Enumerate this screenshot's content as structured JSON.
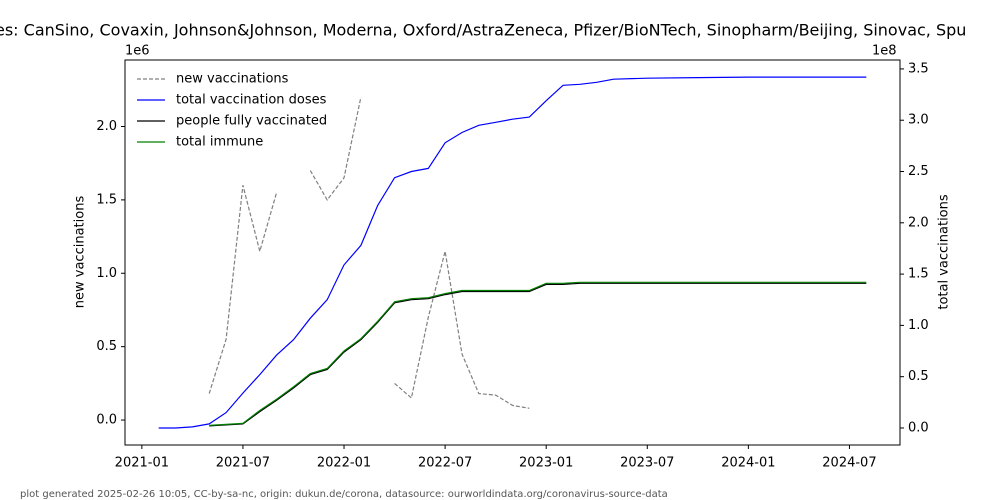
{
  "chart_data": {
    "type": "line",
    "title": "es: CanSino, Covaxin, Johnson&Johnson, Moderna, Oxford/AstraZeneca, Pfizer/BioNTech, Sinopharm/Beijing, Sinovac, Spu",
    "ylabel": "new vaccinations",
    "y2label": "total vaccinations",
    "y_offset_label": "1e6",
    "y2_offset_label": "1e8",
    "footer": "plot generated 2025-02-26 10:05, CC-by-sa-nc, origin: dukun.de/corona, datasource: ourworldindata.org/coronavirus-source-data",
    "legend": "upper left",
    "xlim": [
      "2020-12",
      "2024-10"
    ],
    "xticks": [
      "2021-01",
      "2021-07",
      "2022-01",
      "2022-07",
      "2023-01",
      "2023-07",
      "2024-01",
      "2024-07"
    ],
    "ylim": [
      -170000,
      2453000
    ],
    "yticks": [
      {
        "value": 0,
        "label": "0.0"
      },
      {
        "value": 500000,
        "label": "0.5"
      },
      {
        "value": 1000000,
        "label": "1.0"
      },
      {
        "value": 1500000,
        "label": "1.5"
      },
      {
        "value": 2000000,
        "label": "2.0"
      }
    ],
    "y2lim": [
      -16600000,
      358700000
    ],
    "y2ticks": [
      {
        "value": 0,
        "label": "0.0"
      },
      {
        "value": 50000000,
        "label": "0.5"
      },
      {
        "value": 100000000,
        "label": "1.0"
      },
      {
        "value": 150000000,
        "label": "1.5"
      },
      {
        "value": 200000000,
        "label": "2.0"
      },
      {
        "value": 250000000,
        "label": "2.5"
      },
      {
        "value": 300000000,
        "label": "3.0"
      },
      {
        "value": 350000000,
        "label": "3.5"
      }
    ],
    "x": [
      "2021-02",
      "2021-03",
      "2021-04",
      "2021-05",
      "2021-06",
      "2021-07",
      "2021-08",
      "2021-09",
      "2021-10",
      "2021-11",
      "2021-12",
      "2022-01",
      "2022-02",
      "2022-03",
      "2022-04",
      "2022-05",
      "2022-06",
      "2022-07",
      "2022-08",
      "2022-09",
      "2022-10",
      "2022-11",
      "2022-12",
      "2023-01",
      "2023-02",
      "2023-03",
      "2023-04",
      "2023-05",
      "2023-07",
      "2023-10",
      "2024-01",
      "2024-04",
      "2024-08"
    ],
    "series": [
      {
        "name": "new vaccinations",
        "color": "#808080",
        "dashed": true,
        "axis": "y",
        "values": [
          null,
          null,
          null,
          180000,
          550000,
          1600000,
          1150000,
          1550000,
          null,
          1700000,
          1500000,
          1650000,
          2200000,
          null,
          250000,
          150000,
          700000,
          1150000,
          450000,
          180000,
          170000,
          100000,
          80000,
          null,
          null,
          null,
          null,
          null,
          null,
          null,
          null,
          null,
          null
        ]
      },
      {
        "name": "total vaccination doses",
        "color": "#0000ff",
        "axis": "y2",
        "values": [
          0,
          0,
          1000000,
          4000000,
          15000000,
          34000000,
          52000000,
          71000000,
          86000000,
          107000000,
          125000000,
          159000000,
          178000000,
          217000000,
          244000000,
          250000000,
          253000000,
          278000000,
          288000000,
          295000000,
          298000000,
          301000000,
          303000000,
          319000000,
          334000000,
          335000000,
          337000000,
          340000000,
          341000000,
          341500000,
          342000000,
          342000000,
          342000000
        ]
      },
      {
        "name": "people fully vaccinated",
        "color": "#000000",
        "axis": "y2",
        "values": [
          null,
          null,
          null,
          2000000,
          3000000,
          4000000,
          16000000,
          27000000,
          39000000,
          52000000,
          57000000,
          74000000,
          86000000,
          103000000,
          122000000,
          125000000,
          126000000,
          130000000,
          133000000,
          133000000,
          133000000,
          133000000,
          133000000,
          140000000,
          140000000,
          141000000,
          141000000,
          141000000,
          141000000,
          141000000,
          141000000,
          141000000,
          141000000
        ]
      },
      {
        "name": "total immune",
        "color": "#008000",
        "axis": "y2",
        "values": [
          null,
          null,
          null,
          2500000,
          3500000,
          4500000,
          17000000,
          28000000,
          40000000,
          53000000,
          58000000,
          75000000,
          87000000,
          104000000,
          123000000,
          126000000,
          127000000,
          131000000,
          134000000,
          134000000,
          134000000,
          134000000,
          134000000,
          141000000,
          141000000,
          142000000,
          142000000,
          142000000,
          142000000,
          142000000,
          142000000,
          142000000,
          142000000
        ]
      }
    ]
  }
}
